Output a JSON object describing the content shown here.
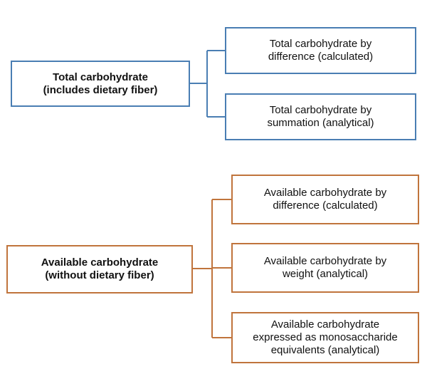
{
  "groups": {
    "total": {
      "root_lines": [
        "Total carbohydrate",
        "(includes dietary fiber)"
      ],
      "children": [
        {
          "lines": [
            "Total carbohydrate by",
            "difference (calculated)"
          ]
        },
        {
          "lines": [
            "Total carbohydrate by",
            "summation (analytical)"
          ]
        }
      ],
      "color": "#4a7eb3"
    },
    "available": {
      "root_lines": [
        "Available carbohydrate",
        "(without dietary fiber)"
      ],
      "children": [
        {
          "lines": [
            "Available carbohydrate by",
            "difference (calculated)"
          ]
        },
        {
          "lines": [
            "Available carbohydrate by",
            "weight (analytical)"
          ]
        },
        {
          "lines": [
            "Available carbohydrate",
            "expressed as monosaccharide",
            "equivalents (analytical)"
          ]
        }
      ],
      "color": "#c0743c"
    }
  }
}
